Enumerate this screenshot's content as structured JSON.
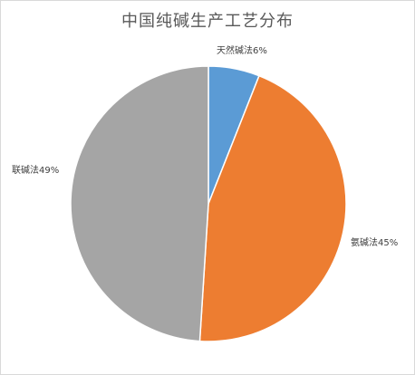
{
  "chart_data": {
    "type": "pie",
    "title": "中国纯碱生产工艺分布",
    "categories": [
      "天然碱法",
      "氨碱法",
      "联碱法"
    ],
    "values": [
      6,
      45,
      49
    ],
    "labels": [
      "天然碱法6%",
      "氨碱法45%",
      "联碱法49%"
    ],
    "colors": [
      "#5b9bd5",
      "#ed7d31",
      "#a5a5a5"
    ],
    "legend": "none",
    "start_angle_deg": 0,
    "direction": "clockwise"
  }
}
